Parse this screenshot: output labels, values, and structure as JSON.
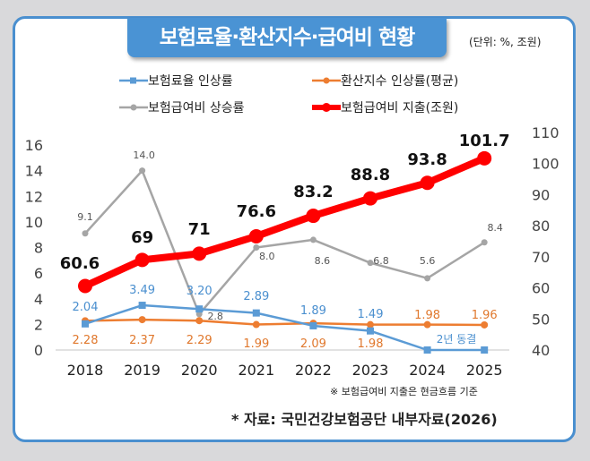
{
  "title": "보험료율·환산지수·급여비 현황",
  "unit_label": "(단위: %, 조원)",
  "note": "※ 보험급여비 지출은 현금흐름 기준",
  "source": "* 자료: 국민건강보험공단 내부자료(2026)",
  "chart_data": {
    "type": "line",
    "categories": [
      "2018",
      "2019",
      "2020",
      "2021",
      "2022",
      "2023",
      "2024",
      "2025"
    ],
    "left_axis": {
      "range": [
        0,
        16
      ],
      "ticks": [
        0,
        2,
        4,
        6,
        8,
        10,
        12,
        14,
        16
      ]
    },
    "right_axis": {
      "range": [
        40,
        110
      ],
      "ticks": [
        40,
        50,
        60,
        70,
        80,
        90,
        100,
        110
      ]
    },
    "legend_position": "top",
    "series": [
      {
        "name": "보험료율 인상률",
        "axis": "left",
        "color": "#5b9bd5",
        "marker": "square",
        "values": [
          2.04,
          3.49,
          3.2,
          2.89,
          1.89,
          1.49,
          0,
          0
        ],
        "labels": [
          "2.04",
          "3.49",
          "3.20",
          "2.89",
          "1.89",
          "1.49",
          "",
          ""
        ]
      },
      {
        "name": "환산지수 인상률(평균)",
        "axis": "left",
        "color": "#ed7d31",
        "marker": "circle",
        "values": [
          2.28,
          2.37,
          2.29,
          1.99,
          2.09,
          1.98,
          1.98,
          1.96
        ],
        "labels": [
          "2.28",
          "2.37",
          "2.29",
          "1.99",
          "2.09",
          "1.98",
          "1.98",
          "1.96"
        ]
      },
      {
        "name": "보험급여비 상승률",
        "axis": "left",
        "color": "#a5a5a5",
        "marker": "circle",
        "values": [
          9.1,
          14.0,
          2.8,
          8.0,
          8.6,
          6.8,
          5.6,
          8.4
        ],
        "labels": [
          "9.1",
          "14.0",
          "2.8",
          "8.0",
          "8.6",
          "6.8",
          "5.6",
          "8.4"
        ]
      },
      {
        "name": "보험급여비 지출(조원)",
        "axis": "right",
        "color": "#ff0000",
        "marker": "circle",
        "values": [
          60.6,
          69,
          71,
          76.6,
          83.2,
          88.8,
          93.8,
          101.7
        ],
        "labels": [
          "60.6",
          "69",
          "71",
          "76.6",
          "83.2",
          "88.8",
          "93.8",
          "101.7"
        ]
      }
    ],
    "annotation": "2년 동결"
  }
}
